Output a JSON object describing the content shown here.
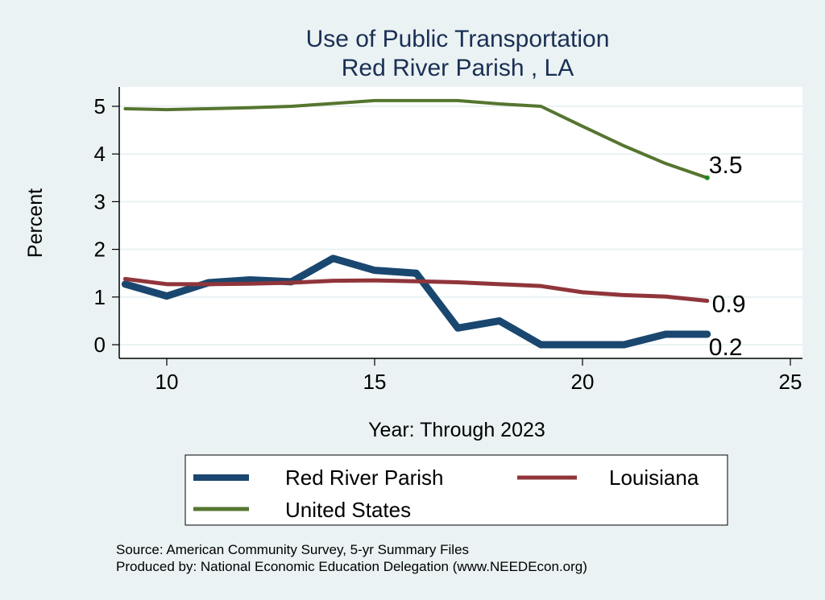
{
  "chart_data": {
    "type": "line",
    "title": "Use of Public Transportation",
    "subtitle": "Red River Parish , LA",
    "xlabel": "Year: Through 2023",
    "ylabel": "Percent",
    "xlim": [
      8.8,
      25.3
    ],
    "ylim": [
      -0.3,
      5.35
    ],
    "xticks": [
      10,
      15,
      20,
      25
    ],
    "yticks": [
      0,
      1,
      2,
      3,
      4,
      5
    ],
    "grid": true,
    "legend_position": "bottom",
    "x": [
      9,
      10,
      11,
      12,
      13,
      14,
      15,
      16,
      17,
      18,
      19,
      20,
      21,
      22,
      23
    ],
    "series": [
      {
        "name": "Red River Parish",
        "color": "#1a476f",
        "values": [
          1.27,
          1.02,
          1.3,
          1.36,
          1.32,
          1.81,
          1.56,
          1.5,
          0.35,
          0.5,
          0.0,
          0.0,
          0.0,
          0.22,
          0.22
        ],
        "end_label": "0.2"
      },
      {
        "name": "Louisiana",
        "color": "#90353b",
        "values": [
          1.38,
          1.27,
          1.27,
          1.28,
          1.3,
          1.34,
          1.35,
          1.33,
          1.31,
          1.27,
          1.23,
          1.1,
          1.04,
          1.01,
          0.92
        ],
        "end_label": "0.9"
      },
      {
        "name": "United States",
        "color": "#55752f",
        "values": [
          4.95,
          4.93,
          4.95,
          4.97,
          5.0,
          5.06,
          5.12,
          5.12,
          5.12,
          5.05,
          5.0,
          4.58,
          4.17,
          3.8,
          3.5
        ],
        "end_label": "3.5"
      }
    ],
    "notes": [
      "Source: American Community Survey, 5-yr Summary Files",
      "Produced by: National Economic Education Delegation (www.NEEDEcon.org)"
    ]
  }
}
